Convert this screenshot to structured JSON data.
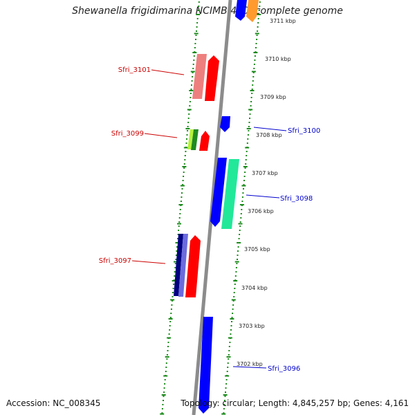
{
  "title": "Shewanella frigidimarina NCIMB 400, complete genome",
  "accession": "Accession: NC_008345",
  "topology": "Topology: circular; Length: 4,845,257 bp; Genes: 4,161",
  "ticks": [
    "3711 kbp",
    "3710 kbp",
    "3709 kbp",
    "3708 kbp",
    "3707 kbp",
    "3706 kbp",
    "3705 kbp",
    "3704 kbp",
    "3703 kbp",
    "3702 kbp"
  ],
  "genes_left": [
    {
      "label": "Sfri_3101",
      "color": "#cc0000"
    },
    {
      "label": "Sfri_3099",
      "color": "#cc0000"
    },
    {
      "label": "Sfri_3097",
      "color": "#cc0000"
    }
  ],
  "genes_right": [
    {
      "label": "Sfri_3100",
      "color": "#0000cc"
    },
    {
      "label": "Sfri_3098",
      "color": "#0000cc"
    },
    {
      "label": "Sfri_3096",
      "color": "#0000cc"
    }
  ],
  "colors": {
    "backbone": "#8c8c8c",
    "dots": "#1a8a1a",
    "red": "#ff0000",
    "pink": "#ee7f7f",
    "blue": "#0000ff",
    "navy": "#000080",
    "slate": "#6b6bdd",
    "green": "#1f8a1f",
    "lime": "#b6f23c",
    "seafoam": "#22e89a",
    "orange": "#ff9a2e"
  }
}
